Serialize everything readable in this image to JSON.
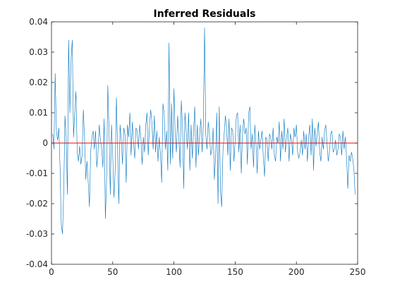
{
  "chart_data": {
    "type": "line",
    "title": "Inferred Residuals",
    "xlabel": "",
    "ylabel": "",
    "xlim": [
      0,
      250
    ],
    "ylim": [
      -0.04,
      0.04
    ],
    "xticks": [
      0,
      50,
      100,
      150,
      200,
      250
    ],
    "yticks": [
      -0.04,
      -0.03,
      -0.02,
      -0.01,
      0,
      0.01,
      0.02,
      0.03,
      0.04
    ],
    "xtick_labels": [
      "0",
      "50",
      "100",
      "150",
      "200",
      "250"
    ],
    "ytick_labels": [
      "-0.04",
      "-0.03",
      "-0.02",
      "-0.01",
      "0",
      "0.01",
      "0.02",
      "0.03",
      "0.04"
    ],
    "grid": false,
    "legend": "none",
    "series": [
      {
        "color": "#0072BD",
        "x_start": 1,
        "x_step": 1,
        "values": [
          0.003,
          -0.002,
          0.023,
          0.004,
          0.001,
          0.005,
          -0.008,
          -0.027,
          -0.03,
          -0.016,
          0.009,
          0.002,
          -0.017,
          0.034,
          0.01,
          0.028,
          0.034,
          0.002,
          0.01,
          0.017,
          -0.003,
          -0.006,
          -0.001,
          -0.007,
          -0.004,
          0.011,
          0.002,
          -0.012,
          -0.006,
          -0.013,
          -0.021,
          -0.003,
          0.002,
          0.004,
          -0.002,
          0.004,
          -0.008,
          -0.003,
          0.006,
          0.001,
          -0.002,
          -0.008,
          0.008,
          -0.025,
          -0.012,
          0.019,
          0.004,
          -0.017,
          0.006,
          -0.004,
          -0.018,
          -0.009,
          0.015,
          -0.002,
          -0.02,
          0.006,
          0.001,
          -0.007,
          0.005,
          0.003,
          -0.013,
          0.006,
          0.002,
          0.01,
          -0.004,
          0.007,
          0.0,
          -0.005,
          0.005,
          0.004,
          -0.002,
          0.006,
          0.002,
          -0.007,
          0.002,
          -0.003,
          0.006,
          0.01,
          -0.004,
          0.005,
          0.011,
          0.007,
          -0.002,
          0.009,
          -0.003,
          0.004,
          -0.006,
          0.002,
          -0.004,
          -0.013,
          0.013,
          0.01,
          -0.002,
          0.004,
          -0.009,
          0.033,
          -0.007,
          0.013,
          -0.005,
          0.018,
          0.003,
          -0.003,
          0.009,
          0.002,
          -0.008,
          0.014,
          0.006,
          -0.015,
          0.01,
          0.004,
          -0.002,
          0.01,
          -0.009,
          0.006,
          -0.005,
          0.004,
          0.012,
          -0.008,
          0.006,
          -0.004,
          0.003,
          0.008,
          -0.003,
          0.006,
          0.038,
          0.003,
          -0.002,
          0.007,
          0.003,
          -0.004,
          -0.002,
          0.005,
          -0.012,
          -0.005,
          0.01,
          -0.02,
          0.012,
          -0.016,
          -0.021,
          -0.003,
          0.003,
          0.009,
          0.005,
          -0.004,
          0.008,
          -0.009,
          0.005,
          0.004,
          -0.006,
          0.001,
          0.009,
          0.01,
          -0.003,
          0.006,
          -0.01,
          0.003,
          0.008,
          0.003,
          0.005,
          -0.007,
          0.01,
          0.012,
          -0.002,
          0.003,
          -0.008,
          0.006,
          0.0,
          -0.01,
          0.004,
          -0.002,
          0.001,
          0.004,
          -0.005,
          -0.011,
          0.002,
          0.001,
          -0.006,
          0.003,
          0.002,
          -0.002,
          0.005,
          -0.004,
          -0.006,
          0.002,
          0.0,
          0.007,
          -0.006,
          0.004,
          -0.002,
          0.008,
          -0.003,
          0.002,
          0.005,
          -0.006,
          0.003,
          0.001,
          -0.004,
          0.005,
          0.002,
          0.006,
          -0.003,
          -0.005,
          -0.003,
          0.001,
          -0.004,
          0.004,
          -0.002,
          0.003,
          -0.006,
          0.002,
          0.006,
          -0.004,
          0.008,
          -0.009,
          0.005,
          -0.001,
          0.003,
          0.007,
          -0.003,
          -0.006,
          0.002,
          -0.002,
          0.004,
          0.006,
          0.0,
          -0.006,
          -0.003,
          0.003,
          0.004,
          -0.003,
          -0.002,
          0.001,
          -0.004,
          -0.002,
          0.003,
          0.002,
          -0.004,
          0.004,
          -0.002,
          0.002,
          -0.005,
          -0.015,
          -0.004,
          -0.006,
          -0.003,
          -0.005,
          -0.009,
          -0.017
        ]
      },
      {
        "color": "#FF0000",
        "values": [
          0,
          0
        ]
      }
    ]
  }
}
